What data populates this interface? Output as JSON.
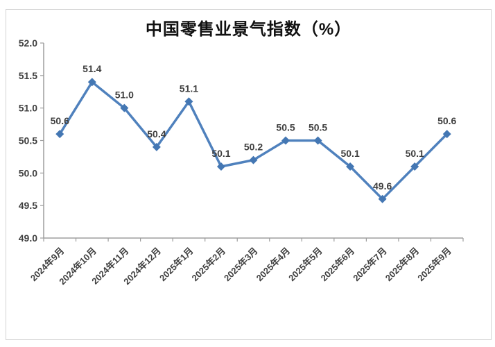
{
  "chart_data": {
    "type": "line",
    "title": "中国零售业景气指数（%）",
    "categories": [
      "2024年9月",
      "2024年10月",
      "2024年11月",
      "2024年12月",
      "2025年1月",
      "2025年2月",
      "2025年3月",
      "2025年4月",
      "2025年5月",
      "2025年6月",
      "2025年7月",
      "2025年8月",
      "2025年9月"
    ],
    "values": [
      50.6,
      51.4,
      51.0,
      50.4,
      51.1,
      50.1,
      50.2,
      50.5,
      50.5,
      50.1,
      49.6,
      50.1,
      50.6
    ],
    "data_labels": [
      "50.6",
      "51.4",
      "51.0",
      "50.4",
      "51.1",
      "50.1",
      "50.2",
      "50.5",
      "50.5",
      "50.1",
      "49.6",
      "50.1",
      "50.6"
    ],
    "xlabel": "",
    "ylabel": "",
    "ylim": [
      49.0,
      52.0
    ],
    "ytick_step": 0.5,
    "ytick_labels": [
      "49.0",
      "49.5",
      "50.0",
      "50.5",
      "51.0",
      "51.5",
      "52.0"
    ],
    "grid": false,
    "legend_position": "none",
    "marker": "diamond",
    "colors": {
      "line": "#4F81BD",
      "marker": "#4477B3",
      "axis": "#9d9d9d",
      "tick_label": "#3f3f3f",
      "data_label": "#3f3f3f",
      "title": "#111111",
      "frame_border": "#d2d2d2",
      "background": "#ffffff"
    }
  }
}
